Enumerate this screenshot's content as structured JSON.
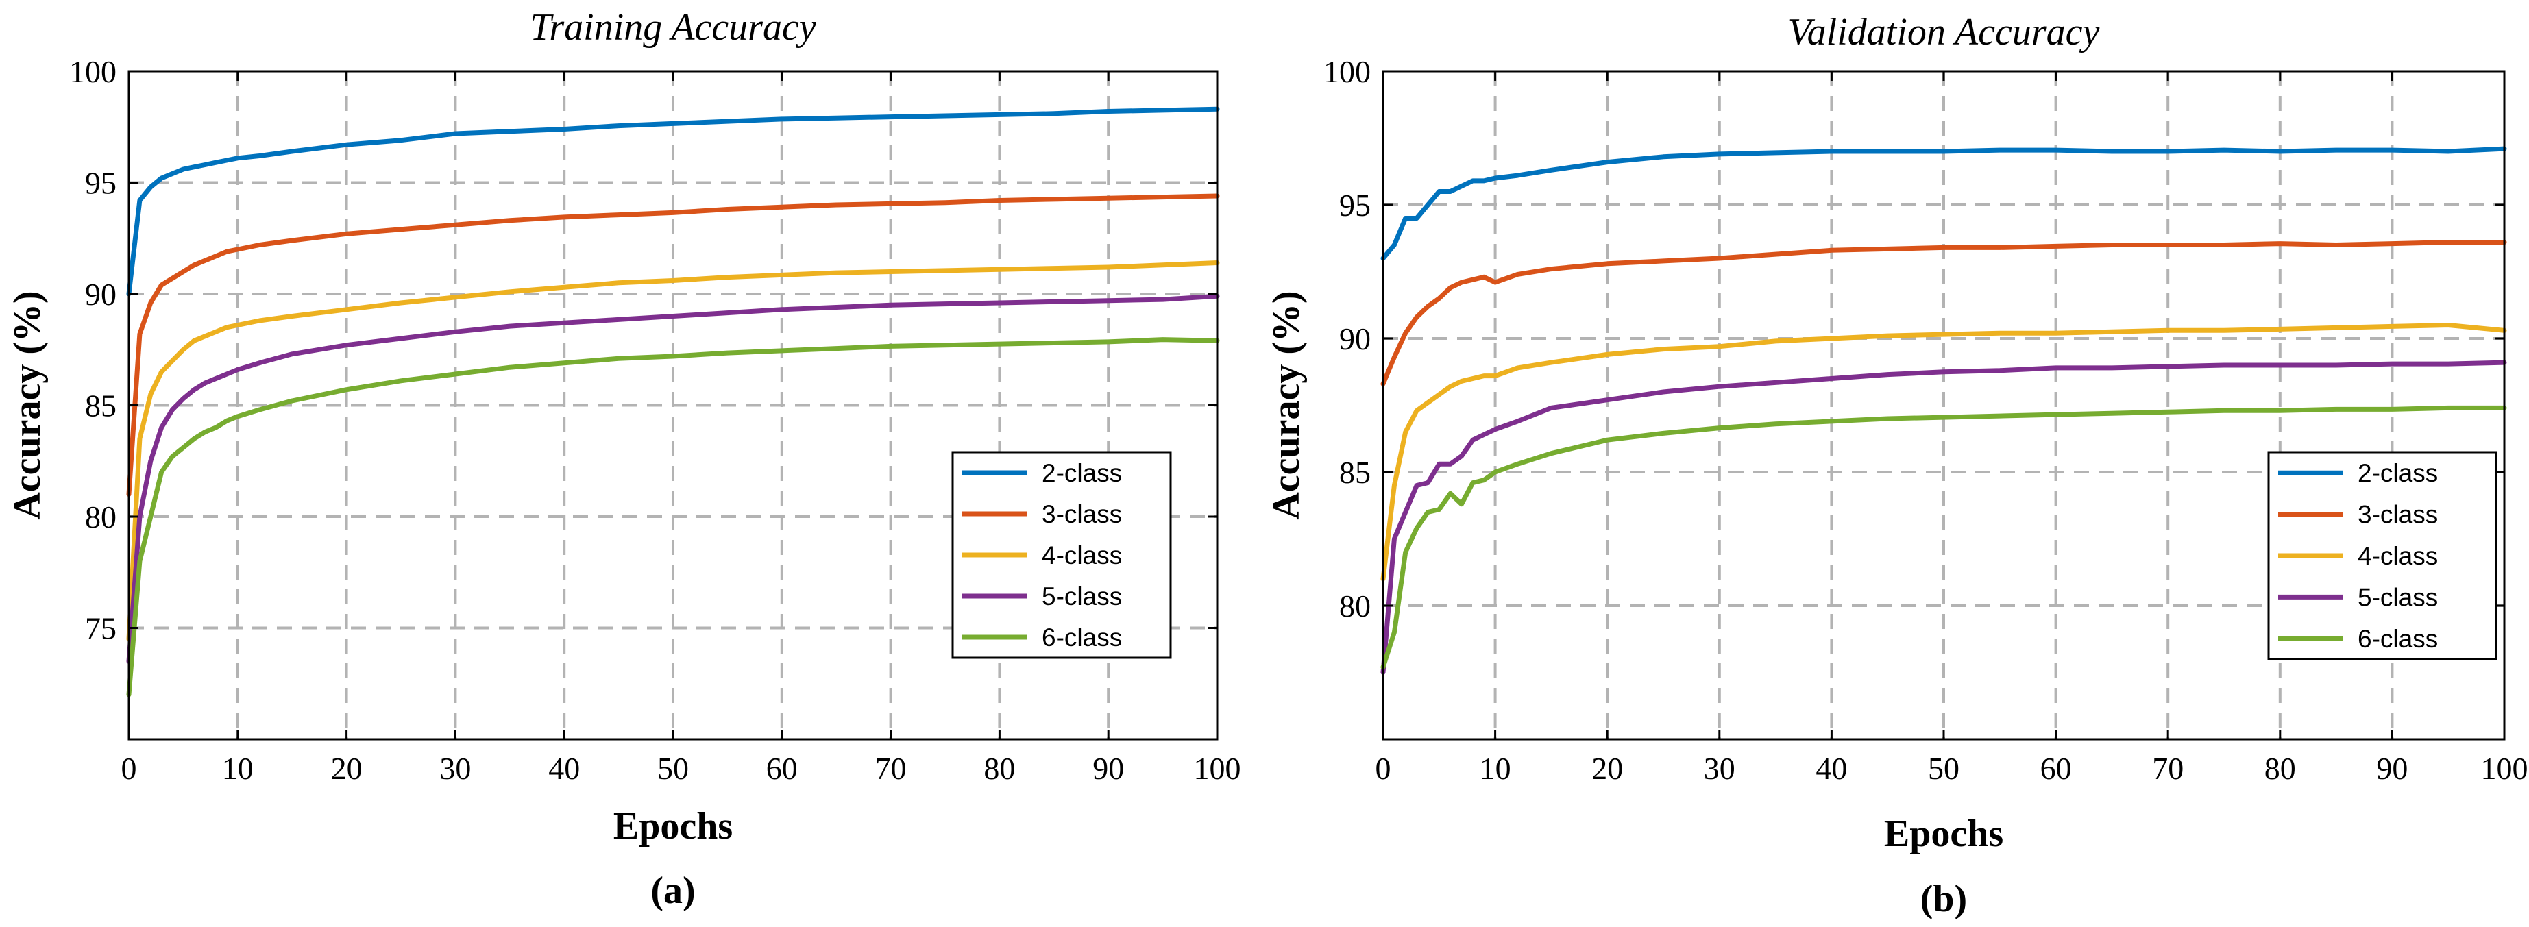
{
  "colors": {
    "c2": "#0072BD",
    "c3": "#D95319",
    "c4": "#EDB120",
    "c5": "#7E2F8E",
    "c6": "#77AC30"
  },
  "chart_data": [
    {
      "id": "training",
      "type": "line",
      "title": "Training Accuracy",
      "xlabel": "Epochs",
      "ylabel": "Accuracy (%)",
      "sublabel": "(a)",
      "xlim": [
        0,
        100
      ],
      "ylim": [
        70,
        100
      ],
      "xticks": [
        "0",
        "10",
        "20",
        "30",
        "40",
        "50",
        "60",
        "70",
        "80",
        "90",
        "100"
      ],
      "yticks": [
        "75",
        "80",
        "85",
        "90",
        "95",
        "100"
      ],
      "grid": true,
      "legend_position": "lower-right",
      "x": [
        0,
        1,
        2,
        3,
        4,
        5,
        6,
        7,
        8,
        9,
        10,
        12,
        15,
        20,
        25,
        30,
        35,
        40,
        45,
        50,
        55,
        60,
        65,
        70,
        75,
        80,
        85,
        90,
        95,
        100
      ],
      "series": [
        {
          "name": "2-class",
          "color": "#0072BD",
          "values": [
            90.0,
            94.2,
            94.8,
            95.2,
            95.4,
            95.6,
            95.7,
            95.8,
            95.9,
            96.0,
            96.1,
            96.2,
            96.4,
            96.7,
            96.9,
            97.2,
            97.3,
            97.4,
            97.55,
            97.65,
            97.75,
            97.85,
            97.9,
            97.95,
            98.0,
            98.05,
            98.1,
            98.2,
            98.25,
            98.3
          ]
        },
        {
          "name": "3-class",
          "color": "#D95319",
          "values": [
            81.0,
            88.2,
            89.6,
            90.4,
            90.7,
            91.0,
            91.3,
            91.5,
            91.7,
            91.9,
            92.0,
            92.2,
            92.4,
            92.7,
            92.9,
            93.1,
            93.3,
            93.45,
            93.55,
            93.65,
            93.8,
            93.9,
            94.0,
            94.05,
            94.1,
            94.2,
            94.25,
            94.3,
            94.35,
            94.4
          ]
        },
        {
          "name": "4-class",
          "color": "#EDB120",
          "values": [
            74.5,
            83.5,
            85.5,
            86.5,
            87.0,
            87.5,
            87.9,
            88.1,
            88.3,
            88.5,
            88.6,
            88.8,
            89.0,
            89.3,
            89.6,
            89.85,
            90.1,
            90.3,
            90.5,
            90.6,
            90.75,
            90.85,
            90.95,
            91.0,
            91.05,
            91.1,
            91.15,
            91.2,
            91.3,
            91.4
          ]
        },
        {
          "name": "5-class",
          "color": "#7E2F8E",
          "values": [
            73.5,
            80.0,
            82.5,
            84.0,
            84.8,
            85.3,
            85.7,
            86.0,
            86.2,
            86.4,
            86.6,
            86.9,
            87.3,
            87.7,
            88.0,
            88.3,
            88.55,
            88.7,
            88.85,
            89.0,
            89.15,
            89.3,
            89.4,
            89.5,
            89.55,
            89.6,
            89.65,
            89.7,
            89.75,
            89.9
          ]
        },
        {
          "name": "6-class",
          "color": "#77AC30",
          "values": [
            72.0,
            78.0,
            80.0,
            82.0,
            82.7,
            83.1,
            83.5,
            83.8,
            84.0,
            84.3,
            84.5,
            84.8,
            85.2,
            85.7,
            86.1,
            86.4,
            86.7,
            86.9,
            87.1,
            87.2,
            87.35,
            87.45,
            87.55,
            87.65,
            87.7,
            87.75,
            87.8,
            87.85,
            87.95,
            87.9
          ]
        }
      ]
    },
    {
      "id": "validation",
      "type": "line",
      "title": "Validation Accuracy",
      "xlabel": "Epochs",
      "ylabel": "Accuracy (%)",
      "sublabel": "(b)",
      "xlim": [
        0,
        100
      ],
      "ylim": [
        75,
        100
      ],
      "xticks": [
        "0",
        "10",
        "20",
        "30",
        "40",
        "50",
        "60",
        "70",
        "80",
        "90",
        "100"
      ],
      "yticks": [
        "80",
        "85",
        "90",
        "95",
        "100"
      ],
      "grid": true,
      "legend_position": "lower-right",
      "x": [
        0,
        1,
        2,
        3,
        4,
        5,
        6,
        7,
        8,
        9,
        10,
        12,
        15,
        20,
        25,
        30,
        35,
        40,
        45,
        50,
        55,
        60,
        65,
        70,
        75,
        80,
        85,
        90,
        95,
        100
      ],
      "series": [
        {
          "name": "2-class",
          "color": "#0072BD",
          "values": [
            93.0,
            93.5,
            94.5,
            94.5,
            95.0,
            95.5,
            95.5,
            95.7,
            95.9,
            95.9,
            96.0,
            96.1,
            96.3,
            96.6,
            96.8,
            96.9,
            96.95,
            97.0,
            97.0,
            97.0,
            97.05,
            97.05,
            97.0,
            97.0,
            97.05,
            97.0,
            97.05,
            97.05,
            97.0,
            97.1
          ]
        },
        {
          "name": "3-class",
          "color": "#D95319",
          "values": [
            88.3,
            89.3,
            90.2,
            90.8,
            91.2,
            91.5,
            91.9,
            92.1,
            92.2,
            92.3,
            92.1,
            92.4,
            92.6,
            92.8,
            92.9,
            93.0,
            93.15,
            93.3,
            93.35,
            93.4,
            93.4,
            93.45,
            93.5,
            93.5,
            93.5,
            93.55,
            93.5,
            93.55,
            93.6,
            93.6
          ]
        },
        {
          "name": "4-class",
          "color": "#EDB120",
          "values": [
            81.0,
            84.5,
            86.5,
            87.3,
            87.6,
            87.9,
            88.2,
            88.4,
            88.5,
            88.6,
            88.6,
            88.9,
            89.1,
            89.4,
            89.6,
            89.7,
            89.9,
            90.0,
            90.1,
            90.15,
            90.2,
            90.2,
            90.25,
            90.3,
            90.3,
            90.35,
            90.4,
            90.45,
            90.5,
            90.3
          ]
        },
        {
          "name": "5-class",
          "color": "#7E2F8E",
          "values": [
            77.5,
            82.5,
            83.5,
            84.5,
            84.6,
            85.3,
            85.3,
            85.6,
            86.2,
            86.4,
            86.6,
            86.9,
            87.4,
            87.7,
            88.0,
            88.2,
            88.35,
            88.5,
            88.65,
            88.75,
            88.8,
            88.9,
            88.9,
            88.95,
            89.0,
            89.0,
            89.0,
            89.05,
            89.05,
            89.1
          ]
        },
        {
          "name": "6-class",
          "color": "#77AC30",
          "values": [
            77.7,
            79.0,
            82.0,
            82.9,
            83.5,
            83.6,
            84.2,
            83.8,
            84.6,
            84.7,
            85.0,
            85.3,
            85.7,
            86.2,
            86.45,
            86.65,
            86.8,
            86.9,
            87.0,
            87.05,
            87.1,
            87.15,
            87.2,
            87.25,
            87.3,
            87.3,
            87.35,
            87.35,
            87.4,
            87.4
          ]
        }
      ]
    }
  ]
}
